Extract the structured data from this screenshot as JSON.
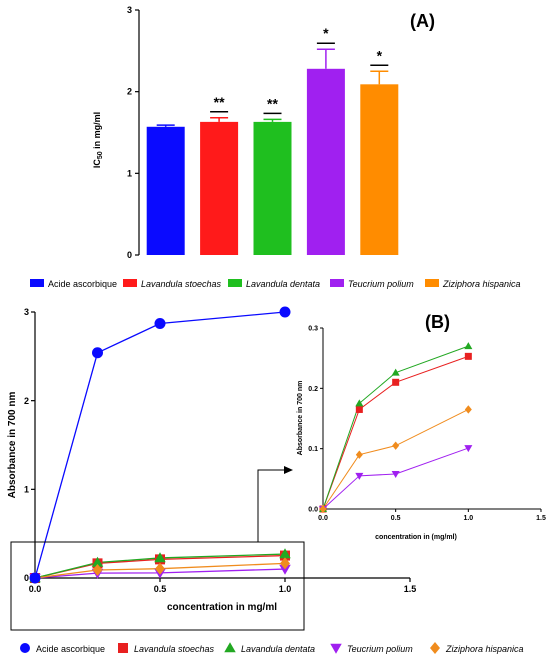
{
  "chart_data": [
    {
      "id": "A",
      "type": "bar",
      "panel_label": "(A)",
      "ylabel_main": "IC",
      "ylabel_sub": "50",
      "ylabel_rest": " in mg/ml",
      "ylim": [
        0,
        3
      ],
      "yticks": [
        "0",
        "1",
        "2",
        "3"
      ],
      "categories": [
        "Acide ascorbique",
        "Lavandula stoechas",
        "Lavandula dentata",
        "Teucrium polium",
        "Ziziphora hispanica"
      ],
      "values": [
        1.57,
        1.63,
        1.63,
        2.28,
        2.09
      ],
      "errors": [
        0.02,
        0.05,
        0.03,
        0.24,
        0.16
      ],
      "significance": [
        "",
        "**",
        "**",
        "*",
        "*"
      ],
      "colors": [
        "#0a0aff",
        "#ff1a1a",
        "#1fbf1f",
        "#a020f0",
        "#ff8c00"
      ],
      "legend": [
        {
          "label": "Acide ascorbique",
          "italic": false
        },
        {
          "label": "Lavandula stoechas",
          "italic": true
        },
        {
          "label": "Lavandula dentata",
          "italic": true
        },
        {
          "label": "Teucrium polium",
          "italic": true
        },
        {
          "label": "Ziziphora hispanica",
          "italic": true
        }
      ]
    },
    {
      "id": "B-main",
      "type": "line",
      "xlabel": "concentration in mg/ml",
      "ylabel": "Absorbance in 700 nm",
      "xlim": [
        0,
        1.5
      ],
      "ylim": [
        0,
        3
      ],
      "xticks": [
        "0.0",
        "0.5",
        "1.0",
        "1.5"
      ],
      "yticks": [
        "0",
        "1",
        "2",
        "3"
      ],
      "x": [
        0,
        0.25,
        0.5,
        1.0
      ],
      "series": [
        {
          "name": "Acide ascorbique",
          "color": "#0a0aff",
          "marker": "circle",
          "values": [
            0,
            2.54,
            2.87,
            3.0
          ]
        },
        {
          "name": "Lavandula stoechas",
          "color": "#e82020",
          "marker": "square",
          "values": [
            0,
            0.165,
            0.21,
            0.253
          ]
        },
        {
          "name": "Lavandula dentata",
          "color": "#22a822",
          "marker": "triangle-up",
          "values": [
            0,
            0.175,
            0.226,
            0.27
          ]
        },
        {
          "name": "Teucrium polium",
          "color": "#a020f0",
          "marker": "triangle-down",
          "values": [
            0,
            0.055,
            0.058,
            0.101
          ]
        },
        {
          "name": "Ziziphora hispanica",
          "color": "#f08c1e",
          "marker": "diamond",
          "values": [
            0,
            0.09,
            0.105,
            0.165
          ]
        }
      ]
    },
    {
      "id": "B-inset",
      "type": "line",
      "panel_label": "(B)",
      "xlabel": "concentration in (mg/ml)",
      "ylabel": "Absorbance in 700 nm",
      "xlim": [
        0,
        1.5
      ],
      "ylim": [
        0,
        0.3
      ],
      "xticks": [
        "0.0",
        "0.5",
        "1.0",
        "1.5"
      ],
      "yticks": [
        "0.0",
        "0.1",
        "0.2",
        "0.3"
      ],
      "x": [
        0,
        0.25,
        0.5,
        1.0
      ],
      "series": [
        {
          "name": "Lavandula stoechas",
          "color": "#e82020",
          "marker": "square",
          "values": [
            0,
            0.165,
            0.21,
            0.253
          ]
        },
        {
          "name": "Lavandula dentata",
          "color": "#22a822",
          "marker": "triangle-up",
          "values": [
            0,
            0.175,
            0.226,
            0.27
          ]
        },
        {
          "name": "Teucrium polium",
          "color": "#a020f0",
          "marker": "triangle-down",
          "values": [
            0,
            0.055,
            0.058,
            0.101
          ]
        },
        {
          "name": "Ziziphora hispanica",
          "color": "#f08c1e",
          "marker": "diamond",
          "values": [
            0,
            0.09,
            0.105,
            0.165
          ]
        }
      ]
    }
  ],
  "legend_b": [
    {
      "label": "Acide ascorbique",
      "italic": false
    },
    {
      "label": "Lavandula stoechas",
      "italic": true
    },
    {
      "label": "Lavandula dentata",
      "italic": true
    },
    {
      "label": "Teucrium polium",
      "italic": true
    },
    {
      "label": "Ziziphora hispanica",
      "italic": true
    }
  ]
}
